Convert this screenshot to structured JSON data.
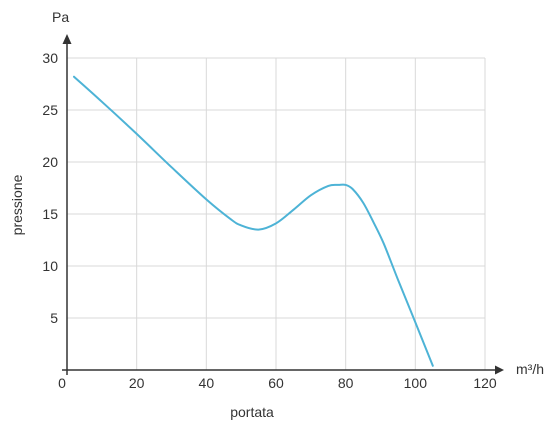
{
  "chart_data": {
    "type": "line",
    "title": "",
    "xlabel": "portata",
    "ylabel": "pressione",
    "x_unit": "m³/h",
    "y_unit": "Pa",
    "xlim": [
      0,
      120
    ],
    "ylim": [
      0,
      30
    ],
    "xticks": [
      0,
      20,
      40,
      60,
      80,
      100,
      120
    ],
    "yticks": [
      5,
      10,
      15,
      20,
      25,
      30
    ],
    "xtick_labels": [
      "0",
      "20",
      "40",
      "60",
      "80",
      "100",
      "120"
    ],
    "ytick_labels": [
      "5",
      "10",
      "15",
      "20",
      "25",
      "30"
    ],
    "grid": true,
    "series": [
      {
        "x": [
          2,
          10,
          20,
          30,
          40,
          47,
          50,
          55,
          60,
          65,
          70,
          75,
          78,
          80,
          82,
          85,
          88,
          91,
          95,
          100,
          105
        ],
        "y": [
          28.2,
          25.8,
          22.7,
          19.5,
          16.4,
          14.5,
          13.9,
          13.5,
          14.1,
          15.4,
          16.8,
          17.7,
          17.8,
          17.8,
          17.4,
          16.1,
          14.2,
          12.1,
          8.7,
          4.6,
          0.4
        ],
        "color": "#4db3d6"
      }
    ]
  }
}
